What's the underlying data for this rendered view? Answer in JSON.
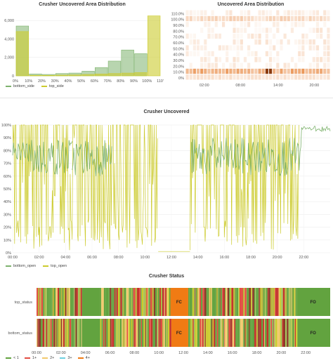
{
  "panels": {
    "hist_title": "Crusher Uncovered Area Distribution",
    "heat_title": "Uncovered Area Distribution",
    "line_title": "Crusher Uncovered",
    "status_title": "Crusher Status"
  },
  "colors": {
    "bottom": "#7eb26d",
    "top": "#cccb2d",
    "heat_base": "#f7e6d6",
    "fo": "#62a33f",
    "fc": "#f07b14"
  },
  "chart_data": [
    {
      "type": "bar",
      "title": "Crusher Uncovered Area Distribution",
      "categories": [
        "0%",
        "10%",
        "20%",
        "30%",
        "40%",
        "50%",
        "60%",
        "70%",
        "80%",
        "90%",
        "100%",
        "110'"
      ],
      "ylim": [
        0,
        7000
      ],
      "y_ticks": [
        "0",
        "2,000",
        "4,000",
        "6,000"
      ],
      "series": [
        {
          "name": "bottom_side",
          "values": [
            5400,
            200,
            150,
            250,
            300,
            500,
            900,
            1600,
            2800,
            2400,
            0,
            0
          ]
        },
        {
          "name": "top_side",
          "values": [
            4800,
            50,
            50,
            80,
            100,
            150,
            200,
            250,
            300,
            350,
            6500,
            0
          ]
        }
      ],
      "legend": "bottom-left"
    },
    {
      "type": "heatmap",
      "title": "Uncovered Area Distribution",
      "y_ticks": [
        "0%",
        "10.0%",
        "20.0%",
        "30.0%",
        "40.0%",
        "50.0%",
        "60.0%",
        "70.0%",
        "80.0%",
        "90.0%",
        "100.0%",
        "110.0%"
      ],
      "x_ticks": [
        "02:00",
        "08:00",
        "14:00",
        "20:00"
      ]
    },
    {
      "type": "line",
      "title": "Crusher Uncovered",
      "ylim": [
        0,
        100
      ],
      "y_ticks": [
        "0%",
        "10%",
        "20%",
        "30%",
        "40%",
        "50%",
        "60%",
        "70%",
        "80%",
        "90%",
        "100%"
      ],
      "x_ticks": [
        "00:00",
        "02:00",
        "04:00",
        "06:00",
        "08:00",
        "10:00",
        "12:00",
        "14:00",
        "16:00",
        "18:00",
        "20:00",
        "22:00"
      ],
      "series": [
        {
          "name": "bottom_open"
        },
        {
          "name": "top_open"
        }
      ],
      "legend": "bottom-left"
    },
    {
      "type": "heatmap",
      "title": "Crusher Status",
      "rows": [
        "top_status",
        "bottom_status"
      ],
      "x_ticks": [
        "00:00",
        "02:00",
        "04:00",
        "06:00",
        "08:00",
        "10:00",
        "12:00",
        "14:00",
        "16:00",
        "18:00",
        "20:00",
        "22:00"
      ],
      "block_labels": {
        "fc": "FC",
        "fo": "FO"
      },
      "legend": [
        "< 1",
        "1+",
        "2+",
        "3+",
        "4+"
      ],
      "legend_colors": [
        "#62a33f",
        "#e24d42",
        "#f2c96d",
        "#6ed0e0",
        "#f07b14"
      ]
    }
  ]
}
